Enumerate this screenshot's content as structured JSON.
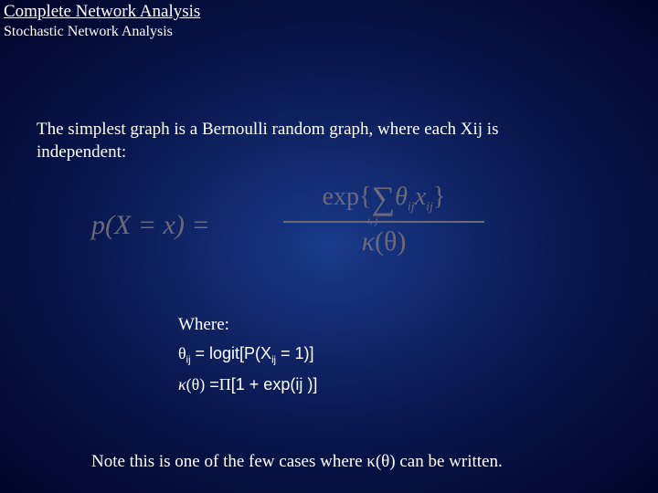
{
  "header": {
    "title": "Complete Network Analysis",
    "subtitle": "Stochastic Network Analysis"
  },
  "intro": "The simplest graph is a Bernoulli random graph, where each Xij is independent:",
  "formula": {
    "lhs": "p(X = x) =",
    "exp_prefix": "exp{",
    "sigma": "∑",
    "sigma_sub": "i, j",
    "theta": "θ",
    "theta_sub": "ij",
    "x": "x",
    "x_sub": "ij",
    "exp_suffix": "}",
    "kappa": "κ",
    "kappa_arg": "(θ)"
  },
  "where": {
    "label": "Where:",
    "line1_theta": "θ",
    "line1_sub": "ij",
    "line1_rest": " = logit[P(X",
    "line1_xsub": "ij",
    "line1_end": " = 1)]",
    "line2_kappa": "κ",
    "line2_arg": "(θ)",
    "line2_eq": " =",
    "line2_pi": "Π",
    "line2_rest": "[1 + exp(ij )]"
  },
  "note_prefix": "Note this is one of the few cases where ",
  "note_kappa": "κ(θ)",
  "note_suffix": " can be written."
}
